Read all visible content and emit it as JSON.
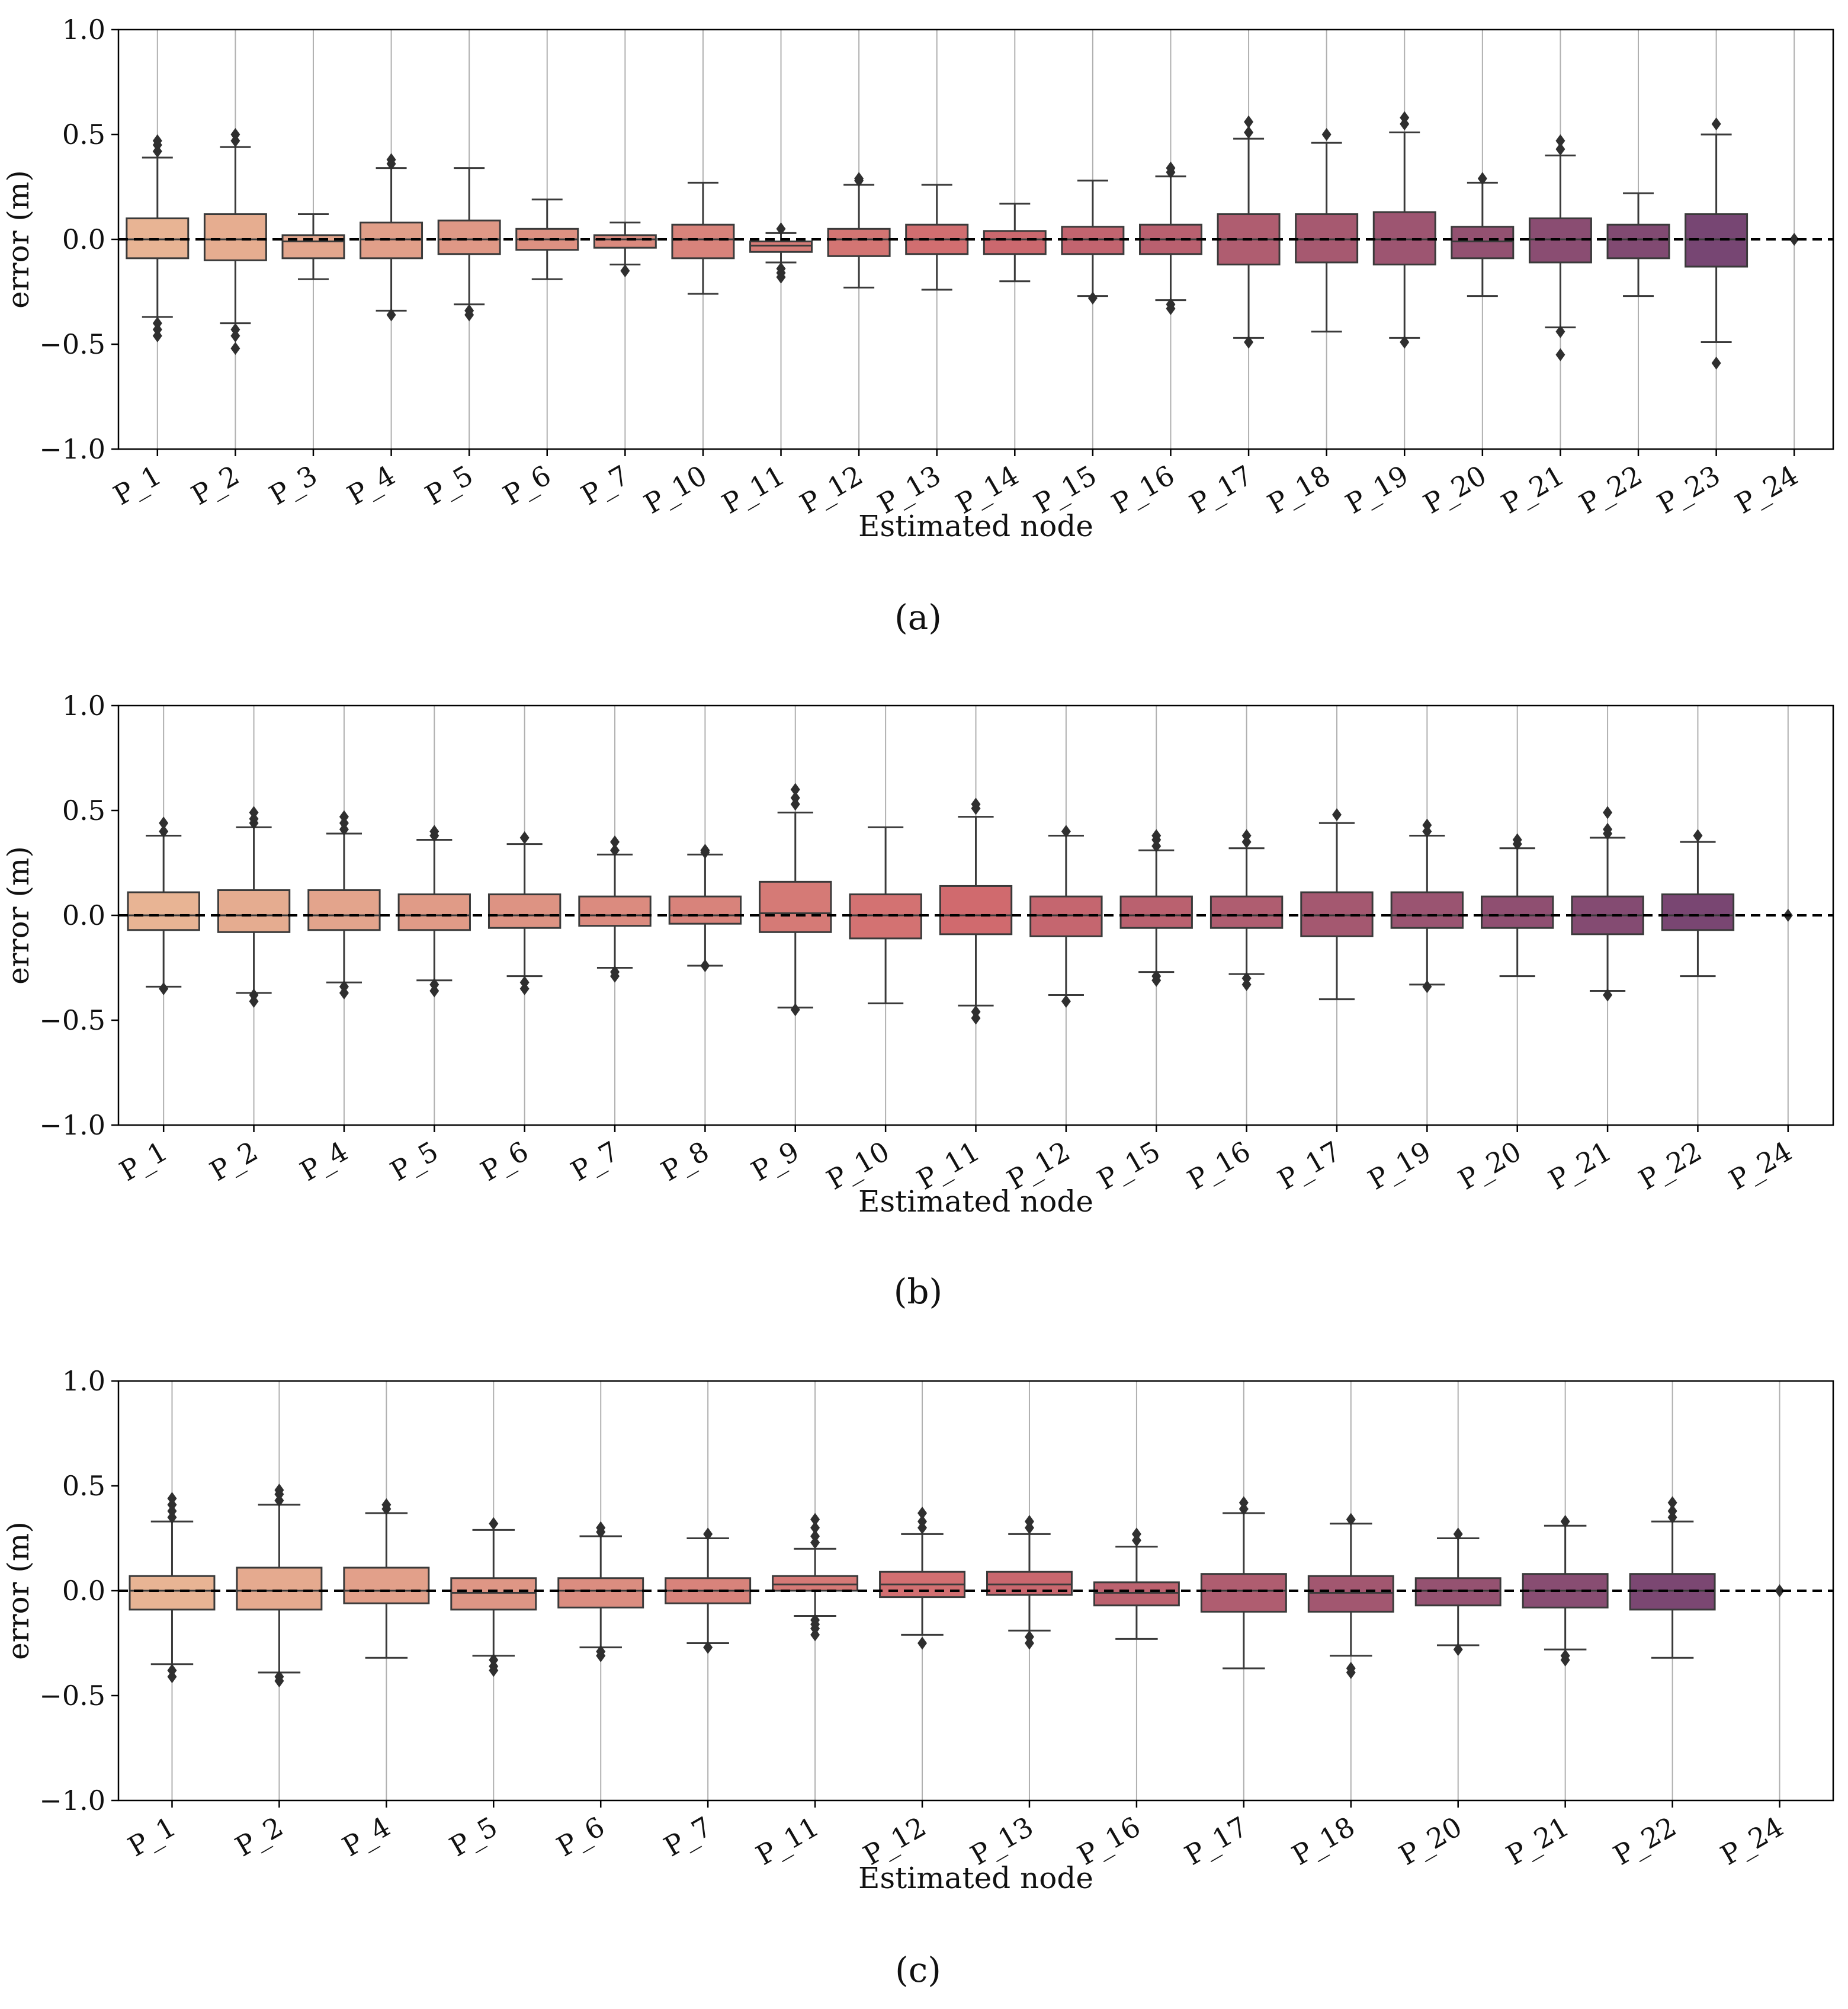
{
  "chart_data": [
    {
      "type": "box",
      "panel_label": "(a)",
      "panel_letter": "a",
      "xlabel": "Estimated node",
      "ylabel": "error (m)",
      "ylim": [
        -1.0,
        1.0
      ],
      "yticks": [
        1.0,
        0.5,
        0.0,
        -0.5,
        -1.0
      ],
      "ytick_labels": [
        "1.0",
        "0.5",
        "0.0",
        "−0.5",
        "−1.0"
      ],
      "grid": "vertical",
      "reference_line": 0.0,
      "categories": [
        "P_1",
        "P_2",
        "P_3",
        "P_4",
        "P_5",
        "P_6",
        "P_7",
        "P_10",
        "P_11",
        "P_12",
        "P_13",
        "P_14",
        "P_15",
        "P_16",
        "P_17",
        "P_18",
        "P_19",
        "P_20",
        "P_21",
        "P_22",
        "P_23",
        "P_24"
      ],
      "boxes": [
        {
          "q1": -0.09,
          "median": 0.0,
          "q3": 0.1,
          "whisker_low": -0.37,
          "whisker_high": 0.39,
          "fliers": [
            0.42,
            0.45,
            0.47,
            -0.4,
            -0.43,
            -0.46
          ]
        },
        {
          "q1": -0.1,
          "median": 0.0,
          "q3": 0.12,
          "whisker_low": -0.4,
          "whisker_high": 0.44,
          "fliers": [
            0.47,
            0.5,
            -0.43,
            -0.46,
            -0.52
          ]
        },
        {
          "q1": -0.09,
          "median": -0.01,
          "q3": 0.02,
          "whisker_low": -0.19,
          "whisker_high": 0.12,
          "fliers": []
        },
        {
          "q1": -0.09,
          "median": 0.0,
          "q3": 0.08,
          "whisker_low": -0.34,
          "whisker_high": 0.34,
          "fliers": [
            0.36,
            0.38,
            -0.36
          ]
        },
        {
          "q1": -0.07,
          "median": 0.0,
          "q3": 0.09,
          "whisker_low": -0.31,
          "whisker_high": 0.34,
          "fliers": [
            -0.34,
            -0.36
          ]
        },
        {
          "q1": -0.05,
          "median": 0.0,
          "q3": 0.05,
          "whisker_low": -0.19,
          "whisker_high": 0.19,
          "fliers": []
        },
        {
          "q1": -0.04,
          "median": 0.0,
          "q3": 0.02,
          "whisker_low": -0.12,
          "whisker_high": 0.08,
          "fliers": [
            -0.15
          ]
        },
        {
          "q1": -0.09,
          "median": 0.0,
          "q3": 0.07,
          "whisker_low": -0.26,
          "whisker_high": 0.27,
          "fliers": []
        },
        {
          "q1": -0.06,
          "median": -0.03,
          "q3": -0.01,
          "whisker_low": -0.11,
          "whisker_high": 0.03,
          "fliers": [
            0.05,
            -0.14,
            -0.16,
            -0.18
          ]
        },
        {
          "q1": -0.08,
          "median": 0.0,
          "q3": 0.05,
          "whisker_low": -0.23,
          "whisker_high": 0.26,
          "fliers": [
            0.28,
            0.29
          ]
        },
        {
          "q1": -0.07,
          "median": 0.0,
          "q3": 0.07,
          "whisker_low": -0.24,
          "whisker_high": 0.26,
          "fliers": []
        },
        {
          "q1": -0.07,
          "median": 0.0,
          "q3": 0.04,
          "whisker_low": -0.2,
          "whisker_high": 0.17,
          "fliers": []
        },
        {
          "q1": -0.07,
          "median": 0.0,
          "q3": 0.06,
          "whisker_low": -0.27,
          "whisker_high": 0.28,
          "fliers": [
            -0.28
          ]
        },
        {
          "q1": -0.07,
          "median": 0.0,
          "q3": 0.07,
          "whisker_low": -0.29,
          "whisker_high": 0.3,
          "fliers": [
            0.32,
            0.34,
            -0.31,
            -0.33
          ]
        },
        {
          "q1": -0.12,
          "median": 0.0,
          "q3": 0.12,
          "whisker_low": -0.47,
          "whisker_high": 0.48,
          "fliers": [
            0.51,
            0.56,
            -0.49
          ]
        },
        {
          "q1": -0.11,
          "median": 0.0,
          "q3": 0.12,
          "whisker_low": -0.44,
          "whisker_high": 0.46,
          "fliers": [
            0.5
          ]
        },
        {
          "q1": -0.12,
          "median": 0.0,
          "q3": 0.13,
          "whisker_low": -0.47,
          "whisker_high": 0.51,
          "fliers": [
            0.55,
            0.58,
            -0.49
          ]
        },
        {
          "q1": -0.09,
          "median": -0.01,
          "q3": 0.06,
          "whisker_low": -0.27,
          "whisker_high": 0.27,
          "fliers": [
            0.29
          ]
        },
        {
          "q1": -0.11,
          "median": 0.0,
          "q3": 0.1,
          "whisker_low": -0.42,
          "whisker_high": 0.4,
          "fliers": [
            0.43,
            0.47,
            -0.44,
            -0.55
          ]
        },
        {
          "q1": -0.09,
          "median": 0.0,
          "q3": 0.07,
          "whisker_low": -0.27,
          "whisker_high": 0.22,
          "fliers": []
        },
        {
          "q1": -0.13,
          "median": 0.0,
          "q3": 0.12,
          "whisker_low": -0.49,
          "whisker_high": 0.5,
          "fliers": [
            0.55,
            -0.59
          ]
        },
        {
          "q1": 0.0,
          "median": 0.0,
          "q3": 0.0,
          "whisker_low": 0.0,
          "whisker_high": 0.0,
          "fliers": [
            0.0
          ]
        }
      ]
    },
    {
      "type": "box",
      "panel_label": "(b)",
      "panel_letter": "b",
      "xlabel": "Estimated node",
      "ylabel": "error (m)",
      "ylim": [
        -1.0,
        1.0
      ],
      "yticks": [
        1.0,
        0.5,
        0.0,
        -0.5,
        -1.0
      ],
      "ytick_labels": [
        "1.0",
        "0.5",
        "0.0",
        "−0.5",
        "−1.0"
      ],
      "grid": "vertical",
      "reference_line": 0.0,
      "categories": [
        "P_1",
        "P_2",
        "P_4",
        "P_5",
        "P_6",
        "P_7",
        "P_8",
        "P_9",
        "P_10",
        "P_11",
        "P_12",
        "P_15",
        "P_16",
        "P_17",
        "P_19",
        "P_20",
        "P_21",
        "P_22",
        "P_24"
      ],
      "boxes": [
        {
          "q1": -0.07,
          "median": 0.0,
          "q3": 0.11,
          "whisker_low": -0.34,
          "whisker_high": 0.38,
          "fliers": [
            0.4,
            0.44,
            -0.35
          ]
        },
        {
          "q1": -0.08,
          "median": 0.0,
          "q3": 0.12,
          "whisker_low": -0.37,
          "whisker_high": 0.42,
          "fliers": [
            0.44,
            0.46,
            0.49,
            -0.38,
            -0.41
          ]
        },
        {
          "q1": -0.07,
          "median": 0.0,
          "q3": 0.12,
          "whisker_low": -0.32,
          "whisker_high": 0.39,
          "fliers": [
            0.41,
            0.44,
            0.47,
            -0.34,
            -0.37
          ]
        },
        {
          "q1": -0.07,
          "median": 0.0,
          "q3": 0.1,
          "whisker_low": -0.31,
          "whisker_high": 0.36,
          "fliers": [
            0.38,
            0.4,
            -0.33,
            -0.36
          ]
        },
        {
          "q1": -0.06,
          "median": 0.0,
          "q3": 0.1,
          "whisker_low": -0.29,
          "whisker_high": 0.34,
          "fliers": [
            0.37,
            -0.32,
            -0.35
          ]
        },
        {
          "q1": -0.05,
          "median": 0.0,
          "q3": 0.09,
          "whisker_low": -0.25,
          "whisker_high": 0.29,
          "fliers": [
            0.31,
            0.35,
            -0.27,
            -0.29
          ]
        },
        {
          "q1": -0.04,
          "median": 0.0,
          "q3": 0.09,
          "whisker_low": -0.24,
          "whisker_high": 0.29,
          "fliers": [
            0.3,
            0.31,
            -0.24
          ]
        },
        {
          "q1": -0.08,
          "median": 0.01,
          "q3": 0.16,
          "whisker_low": -0.44,
          "whisker_high": 0.49,
          "fliers": [
            0.53,
            0.56,
            0.6,
            -0.45
          ]
        },
        {
          "q1": -0.11,
          "median": 0.0,
          "q3": 0.1,
          "whisker_low": -0.42,
          "whisker_high": 0.42,
          "fliers": []
        },
        {
          "q1": -0.09,
          "median": 0.0,
          "q3": 0.14,
          "whisker_low": -0.43,
          "whisker_high": 0.47,
          "fliers": [
            0.51,
            0.53,
            -0.46,
            -0.49
          ]
        },
        {
          "q1": -0.1,
          "median": 0.0,
          "q3": 0.09,
          "whisker_low": -0.38,
          "whisker_high": 0.38,
          "fliers": [
            0.4,
            -0.41
          ]
        },
        {
          "q1": -0.06,
          "median": 0.0,
          "q3": 0.09,
          "whisker_low": -0.27,
          "whisker_high": 0.31,
          "fliers": [
            0.33,
            0.36,
            0.38,
            -0.29,
            -0.31
          ]
        },
        {
          "q1": -0.06,
          "median": 0.0,
          "q3": 0.09,
          "whisker_low": -0.28,
          "whisker_high": 0.32,
          "fliers": [
            0.35,
            0.38,
            -0.3,
            -0.33
          ]
        },
        {
          "q1": -0.1,
          "median": 0.0,
          "q3": 0.11,
          "whisker_low": -0.4,
          "whisker_high": 0.44,
          "fliers": [
            0.48
          ]
        },
        {
          "q1": -0.06,
          "median": 0.0,
          "q3": 0.11,
          "whisker_low": -0.33,
          "whisker_high": 0.38,
          "fliers": [
            0.4,
            0.43,
            -0.34
          ]
        },
        {
          "q1": -0.06,
          "median": 0.0,
          "q3": 0.09,
          "whisker_low": -0.29,
          "whisker_high": 0.32,
          "fliers": [
            0.34,
            0.36
          ]
        },
        {
          "q1": -0.09,
          "median": 0.0,
          "q3": 0.09,
          "whisker_low": -0.36,
          "whisker_high": 0.37,
          "fliers": [
            0.39,
            0.41,
            0.49,
            -0.38
          ]
        },
        {
          "q1": -0.07,
          "median": 0.0,
          "q3": 0.1,
          "whisker_low": -0.29,
          "whisker_high": 0.35,
          "fliers": [
            0.38
          ]
        },
        {
          "q1": 0.0,
          "median": 0.0,
          "q3": 0.0,
          "whisker_low": 0.0,
          "whisker_high": 0.0,
          "fliers": [
            0.0
          ]
        }
      ]
    },
    {
      "type": "box",
      "panel_label": "(c)",
      "panel_letter": "c",
      "xlabel": "Estimated node",
      "ylabel": "error (m)",
      "ylim": [
        -1.0,
        1.0
      ],
      "yticks": [
        1.0,
        0.5,
        0.0,
        -0.5,
        -1.0
      ],
      "ytick_labels": [
        "1.0",
        "0.5",
        "0.0",
        "−0.5",
        "−1.0"
      ],
      "grid": "vertical",
      "reference_line": 0.0,
      "categories": [
        "P_1",
        "P_2",
        "P_4",
        "P_5",
        "P_6",
        "P_7",
        "P_11",
        "P_12",
        "P_13",
        "P_16",
        "P_17",
        "P_18",
        "P_20",
        "P_21",
        "P_22",
        "P_24"
      ],
      "boxes": [
        {
          "q1": -0.09,
          "median": 0.0,
          "q3": 0.07,
          "whisker_low": -0.35,
          "whisker_high": 0.33,
          "fliers": [
            0.35,
            0.38,
            0.41,
            0.44,
            -0.38,
            -0.41
          ]
        },
        {
          "q1": -0.09,
          "median": 0.0,
          "q3": 0.11,
          "whisker_low": -0.39,
          "whisker_high": 0.41,
          "fliers": [
            0.43,
            0.46,
            0.48,
            -0.41,
            -0.43
          ]
        },
        {
          "q1": -0.06,
          "median": 0.0,
          "q3": 0.11,
          "whisker_low": -0.32,
          "whisker_high": 0.37,
          "fliers": [
            0.39,
            0.41
          ]
        },
        {
          "q1": -0.09,
          "median": -0.01,
          "q3": 0.06,
          "whisker_low": -0.31,
          "whisker_high": 0.29,
          "fliers": [
            0.32,
            -0.33,
            -0.36,
            -0.38
          ]
        },
        {
          "q1": -0.08,
          "median": 0.0,
          "q3": 0.06,
          "whisker_low": -0.27,
          "whisker_high": 0.26,
          "fliers": [
            0.28,
            0.3,
            -0.29,
            -0.31
          ]
        },
        {
          "q1": -0.06,
          "median": 0.0,
          "q3": 0.06,
          "whisker_low": -0.25,
          "whisker_high": 0.25,
          "fliers": [
            0.27,
            -0.27
          ]
        },
        {
          "q1": 0.0,
          "median": 0.03,
          "q3": 0.07,
          "whisker_low": -0.12,
          "whisker_high": 0.2,
          "fliers": [
            0.23,
            0.26,
            0.3,
            0.34,
            -0.14,
            -0.16,
            -0.18,
            -0.21
          ]
        },
        {
          "q1": -0.03,
          "median": 0.03,
          "q3": 0.09,
          "whisker_low": -0.21,
          "whisker_high": 0.27,
          "fliers": [
            0.3,
            0.33,
            0.37,
            -0.25
          ]
        },
        {
          "q1": -0.02,
          "median": 0.03,
          "q3": 0.09,
          "whisker_low": -0.19,
          "whisker_high": 0.27,
          "fliers": [
            0.3,
            0.33,
            -0.22,
            -0.25
          ]
        },
        {
          "q1": -0.07,
          "median": -0.01,
          "q3": 0.04,
          "whisker_low": -0.23,
          "whisker_high": 0.21,
          "fliers": [
            0.24,
            0.27
          ]
        },
        {
          "q1": -0.1,
          "median": 0.0,
          "q3": 0.08,
          "whisker_low": -0.37,
          "whisker_high": 0.37,
          "fliers": [
            0.39,
            0.42
          ]
        },
        {
          "q1": -0.1,
          "median": -0.01,
          "q3": 0.07,
          "whisker_low": -0.31,
          "whisker_high": 0.32,
          "fliers": [
            0.34,
            -0.37,
            -0.39
          ]
        },
        {
          "q1": -0.07,
          "median": 0.0,
          "q3": 0.06,
          "whisker_low": -0.26,
          "whisker_high": 0.25,
          "fliers": [
            0.27,
            -0.28
          ]
        },
        {
          "q1": -0.08,
          "median": 0.0,
          "q3": 0.08,
          "whisker_low": -0.28,
          "whisker_high": 0.31,
          "fliers": [
            0.33,
            -0.31,
            -0.33
          ]
        },
        {
          "q1": -0.09,
          "median": 0.0,
          "q3": 0.08,
          "whisker_low": -0.32,
          "whisker_high": 0.33,
          "fliers": [
            0.35,
            0.38,
            0.42
          ]
        },
        {
          "q1": 0.0,
          "median": 0.0,
          "q3": 0.0,
          "whisker_low": 0.0,
          "whisker_high": 0.0,
          "fliers": [
            0.0
          ]
        }
      ]
    }
  ],
  "colors": {
    "palette_start": "#E8B494",
    "palette_mid": "#D06A6E",
    "palette_end": "#6E4273",
    "box_edge": "#3a3a3a",
    "grid": "#b0b0b0",
    "axis": "#000000"
  }
}
